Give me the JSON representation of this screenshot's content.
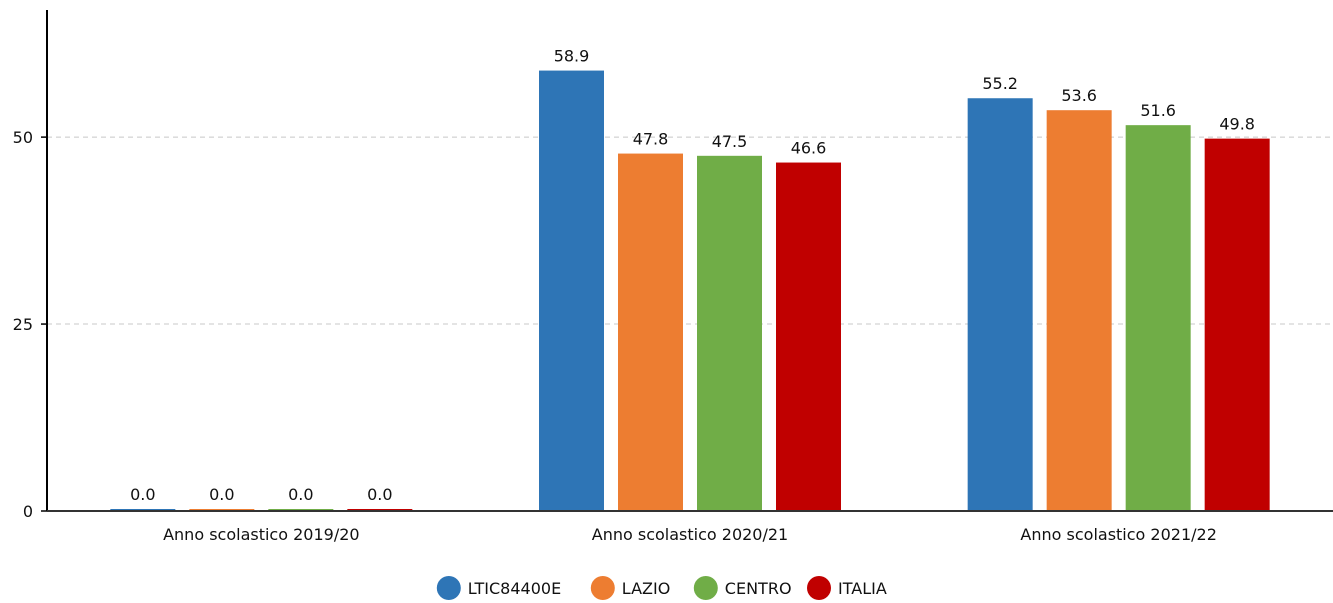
{
  "chart_data": {
    "type": "bar",
    "categories": [
      "Anno scolastico 2019/20",
      "Anno scolastico 2020/21",
      "Anno scolastico 2021/22"
    ],
    "series": [
      {
        "name": "LTIC84400E",
        "color": "#2e75b6",
        "values": [
          0.0,
          58.9,
          55.2
        ]
      },
      {
        "name": "LAZIO",
        "color": "#ed7d31",
        "values": [
          0.0,
          47.8,
          53.6
        ]
      },
      {
        "name": "CENTRO",
        "color": "#70ad47",
        "values": [
          0.0,
          47.5,
          51.6
        ]
      },
      {
        "name": "ITALIA",
        "color": "#c00000",
        "values": [
          0.0,
          46.6,
          49.8
        ]
      }
    ],
    "yticks": [
      0,
      25,
      50
    ],
    "ylim": [
      0,
      67
    ],
    "grid": true,
    "legend_position": "bottom-center",
    "title": "",
    "xlabel": "",
    "ylabel": ""
  }
}
